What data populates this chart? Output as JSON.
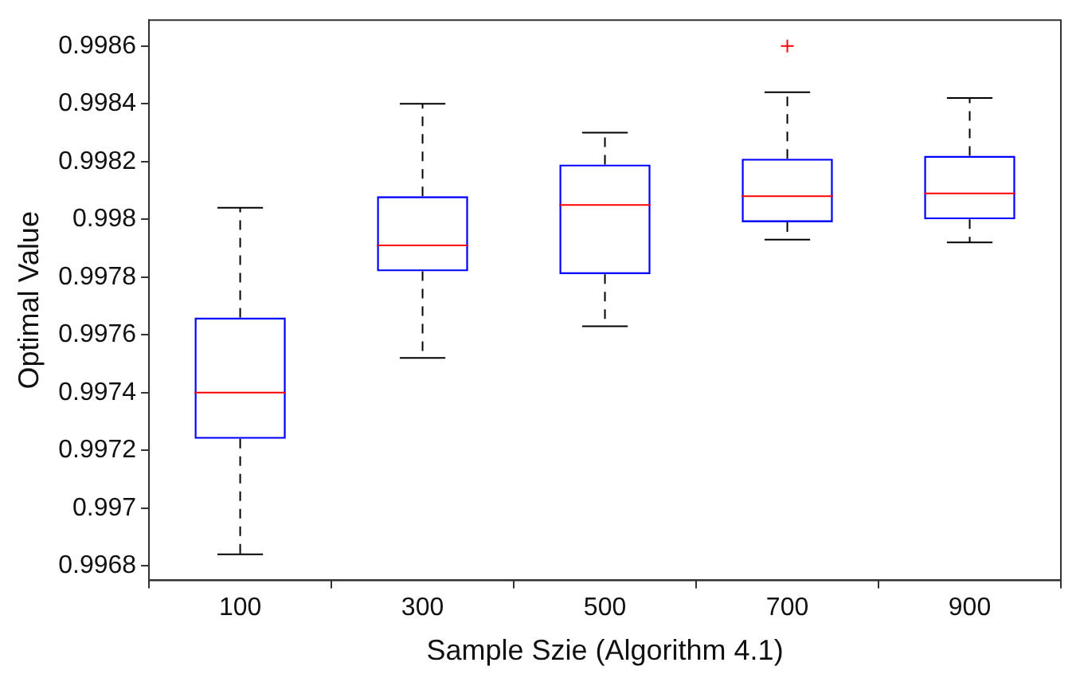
{
  "chart_data": {
    "type": "box",
    "xlabel": "Sample Szie (Algorithm 4.1)",
    "ylabel": "Optimal Value",
    "categories": [
      "100",
      "300",
      "500",
      "700",
      "900"
    ],
    "series": [
      {
        "color": "#0000ff",
        "boxes": [
          {
            "low": 0.99684,
            "q1": 0.99724,
            "median": 0.9974,
            "q3": 0.99766,
            "high": 0.99804
          },
          {
            "low": 0.99752,
            "q1": 0.99782,
            "median": 0.99791,
            "q3": 0.99808,
            "high": 0.9984
          },
          {
            "low": 0.99763,
            "q1": 0.99781,
            "median": 0.99805,
            "q3": 0.99819,
            "high": 0.9983
          },
          {
            "low": 0.99793,
            "q1": 0.99799,
            "median": 0.99808,
            "q3": 0.99821,
            "high": 0.99844,
            "outliers": [
              0.9986
            ]
          },
          {
            "low": 0.99792,
            "q1": 0.998,
            "median": 0.99809,
            "q3": 0.99822,
            "high": 0.99842
          }
        ]
      }
    ],
    "ylim": [
      0.99675,
      0.99869
    ],
    "yticks": [
      0.9968,
      0.997,
      0.9972,
      0.9974,
      0.9976,
      0.9978,
      0.998,
      0.9982,
      0.9984,
      0.9986
    ],
    "grid": false,
    "legend": false
  }
}
